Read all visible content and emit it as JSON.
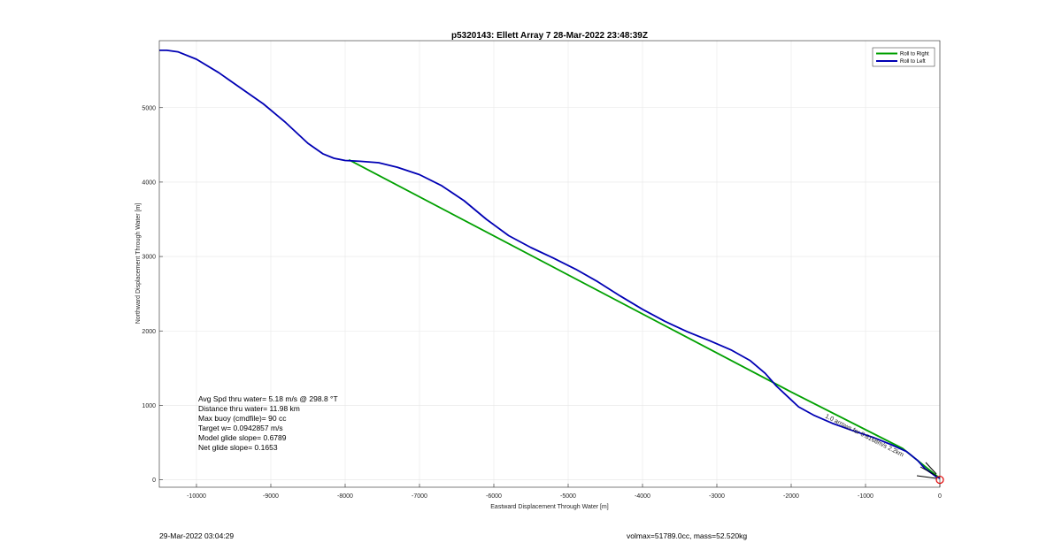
{
  "chart_data": {
    "type": "line",
    "title": "p5320143: Ellett Array 7 28-Mar-2022 23:48:39Z",
    "xlabel": "Eastward Displacement Through Water [m]",
    "ylabel": "Northward Displacement Through Water [m]",
    "xlim": [
      -10500,
      0
    ],
    "ylim": [
      -100,
      5900
    ],
    "x_ticks": [
      -10000,
      -9000,
      -8000,
      -7000,
      -6000,
      -5000,
      -4000,
      -3000,
      -2000,
      -1000,
      0
    ],
    "y_ticks": [
      0,
      1000,
      2000,
      3000,
      4000,
      5000
    ],
    "grid": true,
    "legend_position": "top-right",
    "series": [
      {
        "name": "Roll to Right",
        "color": "#00a000",
        "x": [
          -7950,
          -2000,
          -500,
          0
        ],
        "y": [
          4300,
          1180,
          420,
          20
        ]
      },
      {
        "name": "Roll to Left",
        "color": "#0000b4",
        "x": [
          -10500,
          -10400,
          -10250,
          -10000,
          -9700,
          -9400,
          -9100,
          -8800,
          -8500,
          -8300,
          -8150,
          -8000,
          -7800,
          -7550,
          -7300,
          -7000,
          -6700,
          -6400,
          -6100,
          -5800,
          -5500,
          -5200,
          -4900,
          -4600,
          -4300,
          -4000,
          -3700,
          -3400,
          -3100,
          -2800,
          -2550,
          -2350,
          -2200,
          -2050,
          -1900,
          -1700,
          -1450,
          -1200,
          -900,
          -650,
          -450,
          -300,
          -200,
          -100,
          -50,
          0
        ],
        "y": [
          5770,
          5770,
          5750,
          5650,
          5470,
          5260,
          5050,
          4800,
          4520,
          4380,
          4320,
          4290,
          4280,
          4260,
          4200,
          4100,
          3950,
          3750,
          3500,
          3280,
          3120,
          2980,
          2830,
          2660,
          2470,
          2290,
          2130,
          1990,
          1870,
          1740,
          1600,
          1430,
          1260,
          1120,
          980,
          870,
          760,
          670,
          570,
          470,
          380,
          260,
          150,
          80,
          40,
          20
        ]
      }
    ],
    "annotations": {
      "track_label": "1.0 arrows for 0.6168m/s 2.2km",
      "stats": [
        "Avg Spd thru water=  5.18 m/s @ 298.8 °T",
        "Distance thru water= 11.98 km",
        "Max buoy (cmdfile)= 90 cc",
        "Target w= 0.0942857 m/s",
        "Model glide slope= 0.6789",
        "Net glide slope= 0.1653"
      ]
    }
  },
  "footer": {
    "timestamp": "29-Mar-2022 03:04:29",
    "vol_mass": "volmax=51789.0cc, mass=52.520kg"
  }
}
